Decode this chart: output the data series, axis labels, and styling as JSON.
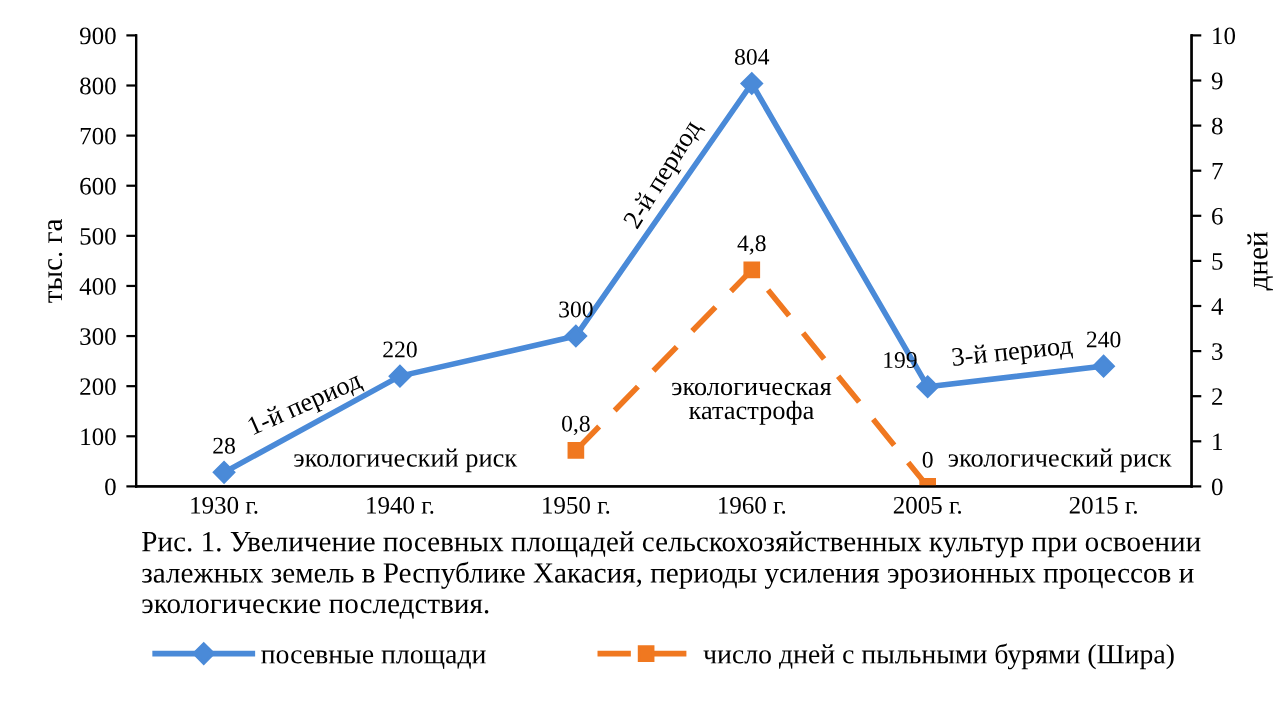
{
  "chart_data": {
    "type": "line",
    "categories": [
      "1930 г.",
      "1940 г.",
      "1950 г.",
      "1960 г.",
      "2005 г.",
      "2015 г."
    ],
    "ylabel": "тыс. га",
    "y2label": "дней",
    "ylim": [
      0,
      900
    ],
    "yticks": [
      0,
      100,
      200,
      300,
      400,
      500,
      600,
      700,
      800,
      900
    ],
    "y2lim": [
      0,
      10
    ],
    "y2ticks": [
      0,
      1,
      2,
      3,
      4,
      5,
      6,
      7,
      8,
      9,
      10
    ],
    "grid": false,
    "legend": "bottom",
    "series": [
      {
        "name": "посевные площади",
        "color": "#4a8ad8",
        "marker": "diamond",
        "line_style": "solid",
        "values": [
          28,
          220,
          300,
          804,
          199,
          240
        ],
        "value_labels": [
          "28",
          "220",
          "300",
          "804",
          "199",
          "240"
        ]
      },
      {
        "name": "число дней с пыльными бурями (Шира)",
        "color": "#f07820",
        "marker": "square",
        "line_style": "dashed",
        "axis": "y2",
        "values": [
          null,
          null,
          0.8,
          4.8,
          0,
          null
        ],
        "value_labels": [
          null,
          null,
          "0,8",
          "4,8",
          "0",
          null
        ]
      }
    ],
    "annotations": [
      "1-й период",
      "экологический риск",
      "2-й период",
      "экологическая\nкатастрофа",
      "3-й период",
      "экологический риск",
      "Рис. 1. Увеличение посевных площадей сельскохозяйственных культур при освоении залежных земель в Республике Хакасия, периоды усиления эрозионных процессов и экологические последствия."
    ]
  }
}
